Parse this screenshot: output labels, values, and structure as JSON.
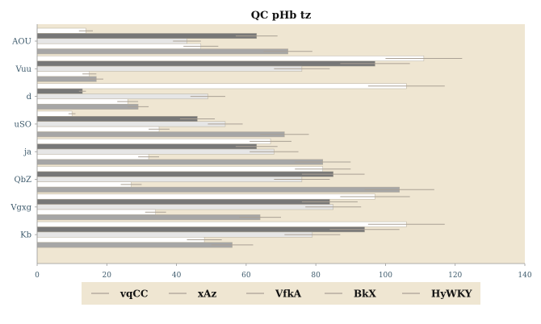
{
  "chart_data": {
    "type": "bar",
    "orientation": "horizontal",
    "title": "QC pHb tz",
    "xlabel": "",
    "ylabel": "",
    "xlim": [
      0,
      140
    ],
    "xticks": [
      0,
      20,
      40,
      60,
      80,
      100,
      120,
      140
    ],
    "grid": false,
    "legend_position": "bottom",
    "categories": [
      "AOU",
      "Vuu",
      "d",
      "uSO",
      "ja",
      "QbZ",
      "Vgxg",
      "Kb"
    ],
    "series": [
      {
        "name": "vqCC",
        "color": "#ffffff",
        "values": [
          14,
          111,
          106,
          10,
          67,
          82,
          97,
          106
        ],
        "errors": [
          2,
          11,
          11,
          1,
          6,
          8,
          10,
          11
        ]
      },
      {
        "name": "xAz",
        "color": "#777777",
        "values": [
          63,
          97,
          13,
          46,
          63,
          85,
          84,
          94
        ],
        "errors": [
          6,
          10,
          1,
          5,
          6,
          9,
          8,
          10
        ]
      },
      {
        "name": "VfkA",
        "color": "#e6e6e6",
        "values": [
          43,
          76,
          49,
          54,
          68,
          76,
          85,
          79
        ],
        "errors": [
          4,
          8,
          5,
          5,
          7,
          8,
          8,
          8
        ]
      },
      {
        "name": "BkX",
        "color": "#ffffff",
        "values": [
          47,
          15,
          26,
          35,
          32,
          27,
          34,
          48
        ],
        "errors": [
          5,
          2,
          3,
          3,
          3,
          3,
          3,
          5
        ]
      },
      {
        "name": "HyWKY",
        "color": "#a6a6a6",
        "values": [
          72,
          17,
          29,
          71,
          82,
          104,
          64,
          56
        ],
        "errors": [
          7,
          2,
          3,
          7,
          8,
          10,
          6,
          6
        ]
      }
    ]
  }
}
